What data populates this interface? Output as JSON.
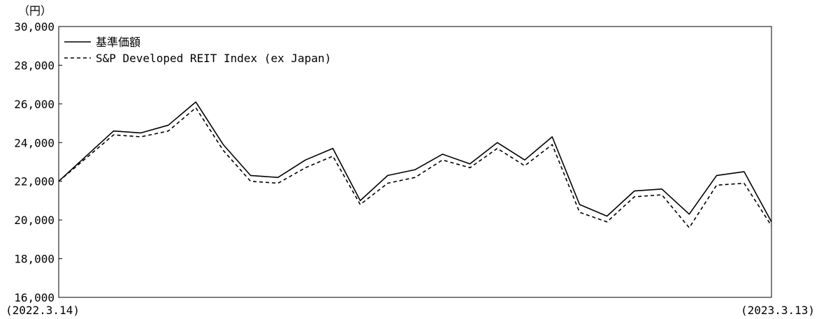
{
  "chart_data": {
    "type": "line",
    "ylabel": "（円）",
    "ylim": [
      16000,
      30000
    ],
    "yticks": [
      16000,
      18000,
      20000,
      22000,
      24000,
      26000,
      28000,
      30000
    ],
    "ytick_labels": [
      "16,000",
      "18,000",
      "20,000",
      "22,000",
      "24,000",
      "26,000",
      "28,000",
      "30,000"
    ],
    "x_start_label": "(2022.3.14)",
    "x_end_label": "(2023.3.13)",
    "x": [
      "2022-03-14",
      "2022-03-28",
      "2022-04-11",
      "2022-04-25",
      "2022-05-09",
      "2022-05-23",
      "2022-06-06",
      "2022-06-20",
      "2022-07-04",
      "2022-07-18",
      "2022-08-01",
      "2022-08-15",
      "2022-08-29",
      "2022-09-12",
      "2022-09-26",
      "2022-10-10",
      "2022-10-24",
      "2022-11-07",
      "2022-11-21",
      "2022-12-05",
      "2022-12-19",
      "2023-01-02",
      "2023-01-16",
      "2023-01-30",
      "2023-02-13",
      "2023-02-27",
      "2023-03-13"
    ],
    "legend_position": "top-left",
    "grid": false,
    "series": [
      {
        "name": "基準価額",
        "style": "solid",
        "color": "#000000",
        "values": [
          22000,
          23300,
          24600,
          24500,
          24900,
          26100,
          23900,
          22300,
          22200,
          23100,
          23700,
          21000,
          22300,
          22600,
          23400,
          22900,
          24000,
          23100,
          24300,
          20800,
          20200,
          21500,
          21600,
          20300,
          22300,
          22500,
          19900
        ]
      },
      {
        "name": "S&P Developed REIT Index (ex Japan)",
        "style": "dashed",
        "color": "#000000",
        "values": [
          22000,
          23200,
          24400,
          24300,
          24600,
          25800,
          23600,
          22000,
          21900,
          22700,
          23300,
          20800,
          21900,
          22200,
          23100,
          22700,
          23700,
          22800,
          23900,
          20400,
          19900,
          21200,
          21300,
          19600,
          21800,
          21900,
          19700
        ]
      }
    ]
  }
}
